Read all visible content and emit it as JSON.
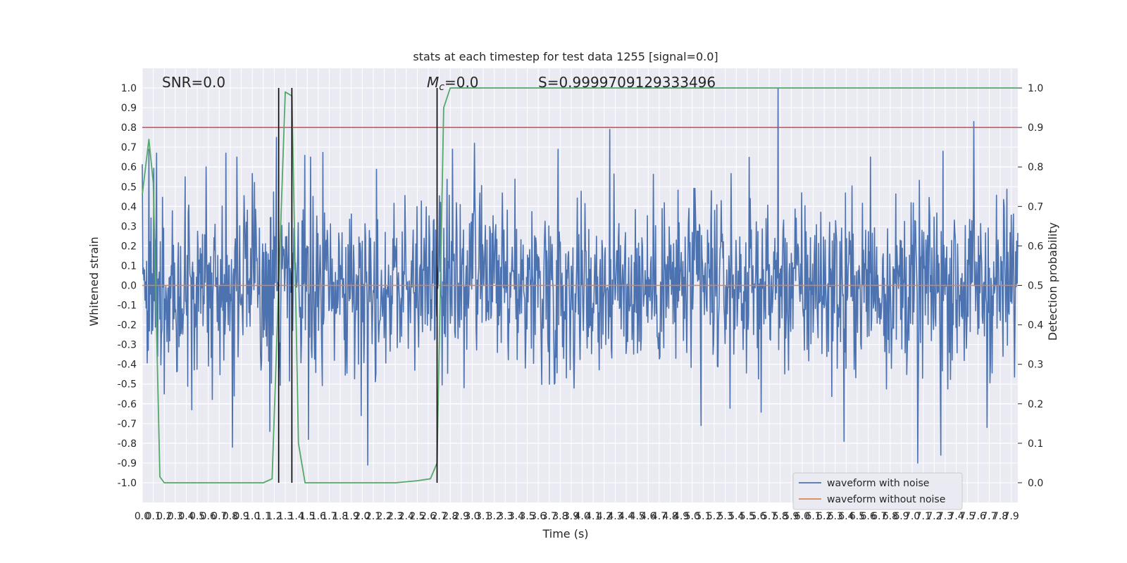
{
  "chart_data": {
    "type": "line",
    "title": "stats at each timestep for test data 1255 [signal=0.0]",
    "xlabel": "Time (s)",
    "ylabel": "Whitened strain",
    "y2label": "Detection probability",
    "xlim": [
      0.0,
      7.96
    ],
    "ylim": [
      -1.1,
      1.1
    ],
    "y2lim": [
      -0.05,
      1.05
    ],
    "grid": true,
    "legend_position": "bottom-right",
    "x_ticks": [
      0.0,
      0.1,
      0.2,
      0.3,
      0.4,
      0.5,
      0.6,
      0.7,
      0.8,
      0.9,
      1.0,
      1.1,
      1.2,
      1.3,
      1.4,
      1.5,
      1.6,
      1.7,
      1.8,
      1.9,
      2.0,
      2.1,
      2.2,
      2.3,
      2.4,
      2.5,
      2.6,
      2.7,
      2.8,
      2.9,
      3.0,
      3.1,
      3.2,
      3.3,
      3.4,
      3.5,
      3.6,
      3.7,
      3.8,
      3.9,
      4.0,
      4.1,
      4.2,
      4.3,
      4.4,
      4.5,
      4.6,
      4.7,
      4.8,
      4.9,
      5.0,
      5.1,
      5.2,
      5.3,
      5.4,
      5.5,
      5.6,
      5.7,
      5.8,
      5.9,
      6.0,
      6.1,
      6.2,
      6.3,
      6.4,
      6.5,
      6.6,
      6.7,
      6.8,
      6.9,
      7.0,
      7.1,
      7.2,
      7.3,
      7.4,
      7.5,
      7.6,
      7.7,
      7.8,
      7.9
    ],
    "y_ticks": [
      -1.0,
      -0.9,
      -0.8,
      -0.7,
      -0.6,
      -0.5,
      -0.4,
      -0.3,
      -0.2,
      -0.1,
      0.0,
      0.1,
      0.2,
      0.3,
      0.4,
      0.5,
      0.6,
      0.7,
      0.8,
      0.9,
      1.0
    ],
    "y2_ticks": [
      0.0,
      0.1,
      0.2,
      0.3,
      0.4,
      0.5,
      0.6,
      0.7,
      0.8,
      0.9,
      1.0
    ],
    "annotations": {
      "snr": "SNR=0.0",
      "mc_symbol": "M",
      "mc_sub": "c",
      "mc_value": "=0.0",
      "s": "S=0.9999709129333496"
    },
    "threshold_y2": 0.9,
    "vertical_lines": [
      1.24,
      1.36,
      2.68
    ],
    "series": [
      {
        "name": "waveform with noise",
        "color": "#4c72b0",
        "kind": "noise",
        "typical_amplitude": 0.4,
        "peaks": [
          {
            "x": 0.06,
            "y": 0.69
          },
          {
            "x": 0.13,
            "y": 0.67
          },
          {
            "x": 0.39,
            "y": 0.55
          },
          {
            "x": 0.58,
            "y": 0.6
          },
          {
            "x": 0.76,
            "y": 0.67
          },
          {
            "x": 0.86,
            "y": 0.65
          },
          {
            "x": 1.22,
            "y": 0.75
          },
          {
            "x": 1.53,
            "y": 0.65
          },
          {
            "x": 2.82,
            "y": 0.69
          },
          {
            "x": 3.02,
            "y": 0.72
          },
          {
            "x": 3.78,
            "y": 0.69
          },
          {
            "x": 4.25,
            "y": 0.79
          },
          {
            "x": 5.78,
            "y": 1.0
          },
          {
            "x": 6.62,
            "y": 0.65
          },
          {
            "x": 7.56,
            "y": 0.83
          },
          {
            "x": 7.28,
            "y": 0.68
          },
          {
            "x": 0.2,
            "y": -0.55
          },
          {
            "x": 0.45,
            "y": -0.63
          },
          {
            "x": 0.82,
            "y": -0.82
          },
          {
            "x": 1.16,
            "y": -0.74
          },
          {
            "x": 1.51,
            "y": -0.78
          },
          {
            "x": 2.05,
            "y": -0.91
          },
          {
            "x": 5.08,
            "y": -0.71
          },
          {
            "x": 6.38,
            "y": -0.79
          },
          {
            "x": 7.05,
            "y": -0.92
          },
          {
            "x": 7.26,
            "y": -0.86
          },
          {
            "x": 7.68,
            "y": -0.72
          },
          {
            "x": 7.05,
            "y": -0.9
          }
        ]
      },
      {
        "name": "waveform without noise",
        "color": "#dd8452",
        "x": [
          0.0,
          7.96
        ],
        "y": [
          0.0,
          0.0
        ]
      },
      {
        "name": "detection probability",
        "color": "#55a868",
        "axis": "right",
        "x": [
          0.0,
          0.06,
          0.1,
          0.16,
          0.2,
          0.26,
          0.6,
          0.9,
          1.1,
          1.18,
          1.24,
          1.3,
          1.36,
          1.42,
          1.48,
          1.6,
          2.3,
          2.5,
          2.62,
          2.68,
          2.74,
          2.8,
          7.96
        ],
        "y": [
          0.73,
          0.87,
          0.76,
          0.015,
          0.0,
          0.0,
          0.0,
          0.0,
          0.0,
          0.01,
          0.5,
          0.99,
          0.98,
          0.1,
          0.0,
          0.0,
          0.0,
          0.005,
          0.01,
          0.05,
          0.95,
          1.0,
          1.0
        ]
      }
    ]
  }
}
